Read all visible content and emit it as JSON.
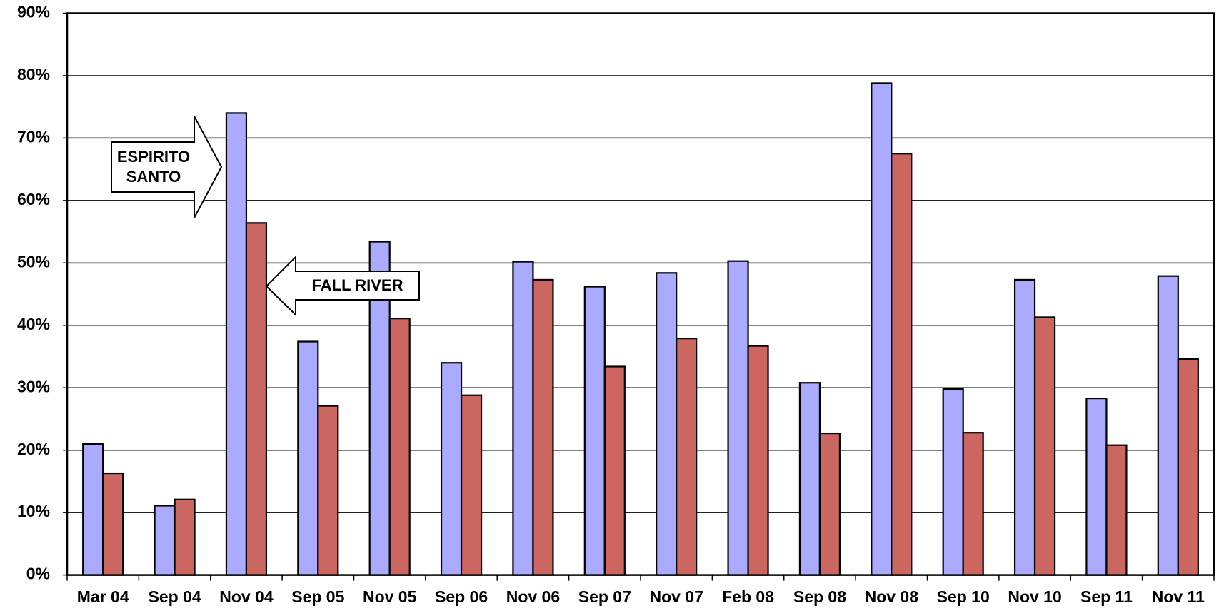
{
  "chart_data": {
    "type": "bar",
    "categories": [
      "Mar 04",
      "Sep 04",
      "Nov 04",
      "Sep 05",
      "Nov 05",
      "Sep 06",
      "Nov 06",
      "Sep 07",
      "Nov 07",
      "Feb 08",
      "Sep 08",
      "Nov 08",
      "Sep 10",
      "Nov 10",
      "Sep 11",
      "Nov 11"
    ],
    "series": [
      {
        "name": "ESPIRITO SANTO",
        "color": "#aaaaff",
        "values": [
          21.0,
          11.1,
          74.0,
          37.4,
          53.4,
          34.0,
          50.2,
          46.2,
          48.4,
          50.3,
          30.8,
          78.8,
          29.8,
          47.3,
          28.3,
          47.9
        ]
      },
      {
        "name": "FALL RIVER",
        "color": "#cc6660",
        "values": [
          16.3,
          12.1,
          56.4,
          27.1,
          41.1,
          28.8,
          47.3,
          33.4,
          37.9,
          36.7,
          22.7,
          67.5,
          22.8,
          41.3,
          20.8,
          34.6
        ]
      }
    ],
    "ylim": [
      0,
      90
    ],
    "yticks": [
      {
        "value": 0,
        "label": "0%"
      },
      {
        "value": 10,
        "label": "10%"
      },
      {
        "value": 20,
        "label": "20%"
      },
      {
        "value": 30,
        "label": "30%"
      },
      {
        "value": 40,
        "label": "40%"
      },
      {
        "value": 50,
        "label": "50%"
      },
      {
        "value": 60,
        "label": "60%"
      },
      {
        "value": 70,
        "label": "70%"
      },
      {
        "value": 80,
        "label": "80%"
      },
      {
        "value": 90,
        "label": "90%"
      }
    ],
    "grid": true
  }
}
